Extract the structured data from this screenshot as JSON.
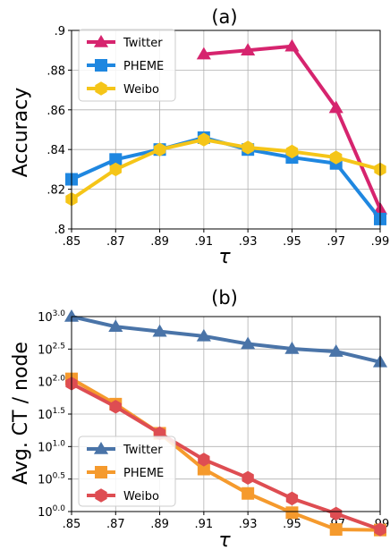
{
  "chart_data": [
    {
      "type": "line",
      "title": "(a)",
      "xlabel": "τ",
      "ylabel": "Accuracy",
      "x_ticks": [
        ".85",
        ".87",
        ".89",
        ".91",
        ".93",
        ".95",
        ".97",
        ".99"
      ],
      "x": [
        0.85,
        0.87,
        0.89,
        0.91,
        0.93,
        0.95,
        0.97,
        0.99
      ],
      "xlim": [
        0.85,
        0.99
      ],
      "ylim": [
        0.8,
        0.9
      ],
      "y_ticks": [
        {
          "value": 0.8,
          "label": ".8"
        },
        {
          "value": 0.82,
          "label": ".82"
        },
        {
          "value": 0.84,
          "label": ".84"
        },
        {
          "value": 0.86,
          "label": ".86"
        },
        {
          "value": 0.88,
          "label": ".88"
        },
        {
          "value": 0.9,
          "label": ".9"
        }
      ],
      "grid": true,
      "legend_position": "top-left",
      "series": [
        {
          "name": "Twitter",
          "color": "#d6246e",
          "marker": "triangle",
          "x": [
            0.91,
            0.93,
            0.95,
            0.97,
            0.99
          ],
          "values": [
            0.888,
            0.89,
            0.892,
            0.861,
            0.81
          ]
        },
        {
          "name": "PHEME",
          "color": "#1f87e0",
          "marker": "square",
          "x": [
            0.85,
            0.87,
            0.89,
            0.91,
            0.93,
            0.95,
            0.97,
            0.99
          ],
          "values": [
            0.825,
            0.835,
            0.84,
            0.846,
            0.84,
            0.836,
            0.833,
            0.805
          ]
        },
        {
          "name": "Weibo",
          "color": "#f5c518",
          "marker": "hexagon",
          "x": [
            0.85,
            0.87,
            0.89,
            0.91,
            0.93,
            0.95,
            0.97,
            0.99
          ],
          "values": [
            0.815,
            0.83,
            0.84,
            0.845,
            0.841,
            0.839,
            0.836,
            0.83
          ]
        }
      ]
    },
    {
      "type": "line",
      "title": "(b)",
      "xlabel": "τ",
      "ylabel": "Avg. CT / node",
      "x_ticks": [
        ".85",
        ".87",
        ".89",
        ".91",
        ".93",
        ".95",
        ".97",
        ".99"
      ],
      "x": [
        0.85,
        0.87,
        0.89,
        0.91,
        0.93,
        0.95,
        0.97,
        0.99
      ],
      "xlim": [
        0.85,
        0.99
      ],
      "yscale": "log10",
      "ylim_exponent": [
        0.0,
        3.0
      ],
      "y_ticks": [
        {
          "exp": 0.0,
          "base": "10",
          "sup": "0.0"
        },
        {
          "exp": 0.5,
          "base": "10",
          "sup": "0.5"
        },
        {
          "exp": 1.0,
          "base": "10",
          "sup": "1.0"
        },
        {
          "exp": 1.5,
          "base": "10",
          "sup": "1.5"
        },
        {
          "exp": 2.0,
          "base": "10",
          "sup": "2.0"
        },
        {
          "exp": 2.5,
          "base": "10",
          "sup": "2.5"
        },
        {
          "exp": 3.0,
          "base": "10",
          "sup": "3.0"
        }
      ],
      "grid": true,
      "legend_position": "bottom-left",
      "series": [
        {
          "name": "Twitter",
          "color": "#4a74a8",
          "marker": "triangle",
          "values": [
            1000,
            700,
            590,
            500,
            380,
            320,
            290,
            200
          ]
        },
        {
          "name": "PHEME",
          "color": "#f59a2d",
          "marker": "square",
          "values": [
            110,
            45,
            16,
            4.5,
            1.9,
            0.96,
            0.53,
            0.52
          ]
        },
        {
          "name": "Weibo",
          "color": "#de4d52",
          "marker": "hexagon",
          "values": [
            93,
            41,
            16,
            6.3,
            3.3,
            1.59,
            0.93,
            0.53
          ]
        }
      ]
    }
  ]
}
